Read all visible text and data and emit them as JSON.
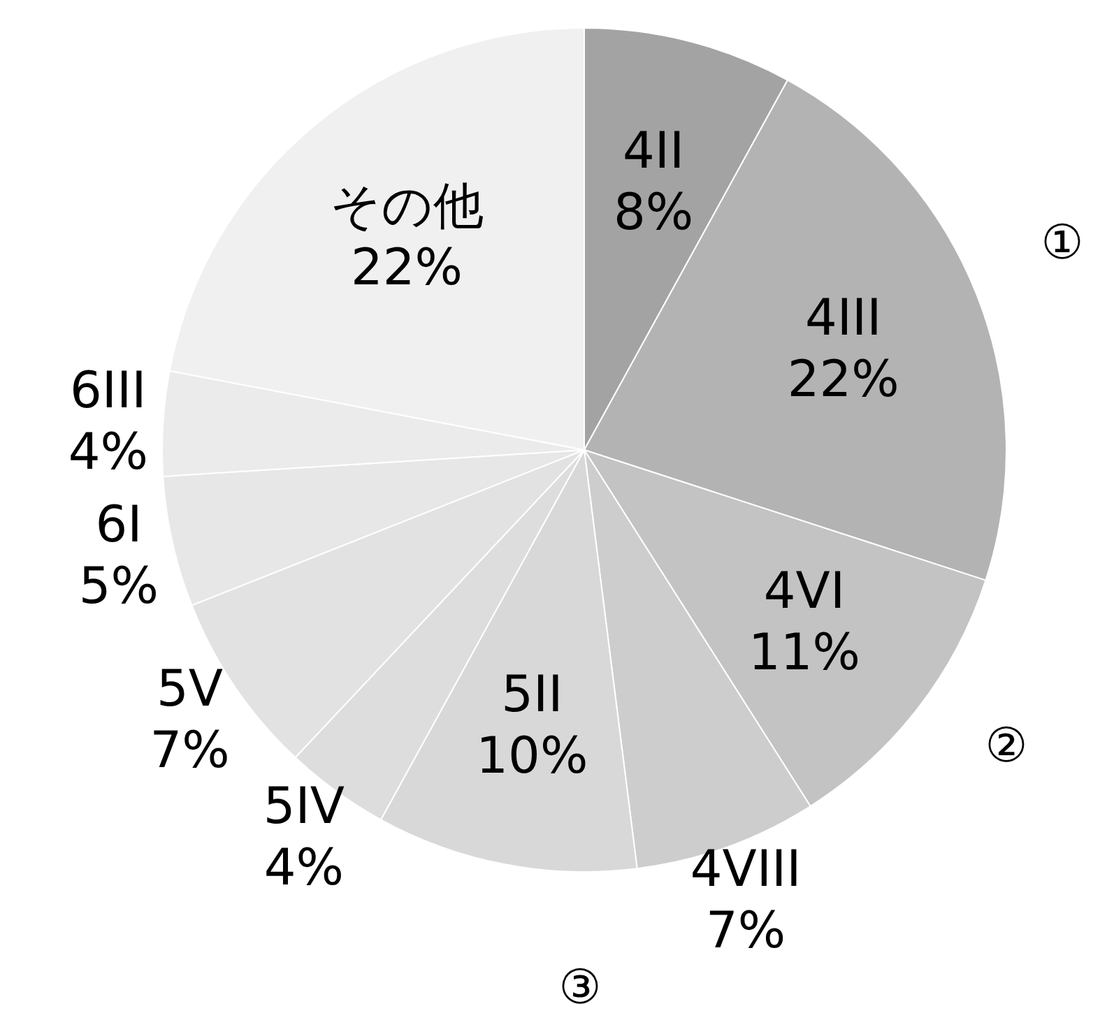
{
  "chart_data": {
    "type": "pie",
    "categories": [
      "4II",
      "4III",
      "4VI",
      "4VIII",
      "5II",
      "5IV",
      "5V",
      "6I",
      "6III",
      "その他"
    ],
    "values": [
      8,
      22,
      11,
      7,
      10,
      4,
      7,
      5,
      4,
      22
    ],
    "value_labels": [
      "8%",
      "22%",
      "11%",
      "7%",
      "10%",
      "4%",
      "7%",
      "5%",
      "4%",
      "22%"
    ],
    "colors": [
      "#a3a3a3",
      "#b3b3b3",
      "#c3c3c3",
      "#cdcdcd",
      "#d8d8d8",
      "#dddddd",
      "#e2e2e2",
      "#e7e7e7",
      "#ebebeb",
      "#f0f0f0"
    ],
    "annotations": [
      "①",
      "②",
      "③"
    ]
  }
}
